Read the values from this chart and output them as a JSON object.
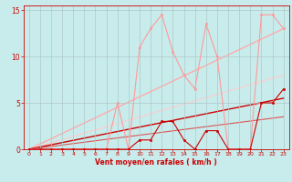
{
  "bg_color": "#c8ecec",
  "grid_color": "#b0c8c8",
  "xlabel": "Vent moyen/en rafales ( km/h )",
  "xlabel_color": "#cc0000",
  "tick_color": "#cc0000",
  "xlim": [
    -0.5,
    23.5
  ],
  "ylim": [
    0,
    15.5
  ],
  "yticks": [
    0,
    5,
    10,
    15
  ],
  "xticks": [
    0,
    1,
    2,
    3,
    4,
    5,
    6,
    7,
    8,
    9,
    10,
    11,
    12,
    13,
    14,
    15,
    16,
    17,
    18,
    19,
    20,
    21,
    22,
    23
  ],
  "line_rafales": {
    "x": [
      0,
      1,
      2,
      3,
      4,
      5,
      6,
      7,
      8,
      9,
      10,
      11,
      12,
      13,
      14,
      15,
      16,
      17,
      18,
      19,
      20,
      21,
      22,
      23
    ],
    "y": [
      0,
      0,
      0,
      0,
      0,
      0,
      0,
      0,
      5,
      0,
      11,
      13,
      14.5,
      10.5,
      8,
      6.5,
      13.5,
      10,
      0,
      0,
      0,
      14.5,
      14.5,
      13
    ],
    "color": "#ff9999",
    "lw": 0.8,
    "marker": "o",
    "ms": 1.8
  },
  "line_moyen": {
    "x": [
      0,
      1,
      2,
      3,
      4,
      5,
      6,
      7,
      8,
      9,
      10,
      11,
      12,
      13,
      14,
      15,
      16,
      17,
      18,
      19,
      20,
      21,
      22,
      23
    ],
    "y": [
      0,
      0,
      0,
      0,
      0,
      0,
      0,
      0,
      0,
      0,
      1,
      1,
      3,
      3,
      1,
      0,
      2,
      2,
      0,
      0,
      0,
      5,
      5,
      6.5
    ],
    "color": "#cc0000",
    "lw": 0.8,
    "marker": "o",
    "ms": 1.8
  },
  "trend_rafales": {
    "x": [
      0,
      23
    ],
    "y": [
      0,
      13.0
    ],
    "color": "#ffaaaa",
    "lw": 1.0
  },
  "trend_rafales2": {
    "x": [
      0,
      23
    ],
    "y": [
      0,
      8.0
    ],
    "color": "#ffcccc",
    "lw": 0.8
  },
  "trend_moyen": {
    "x": [
      0,
      23
    ],
    "y": [
      0,
      5.5
    ],
    "color": "#cc0000",
    "lw": 1.0
  },
  "trend_moyen2": {
    "x": [
      0,
      23
    ],
    "y": [
      0,
      3.5
    ],
    "color": "#dd5555",
    "lw": 0.8
  }
}
